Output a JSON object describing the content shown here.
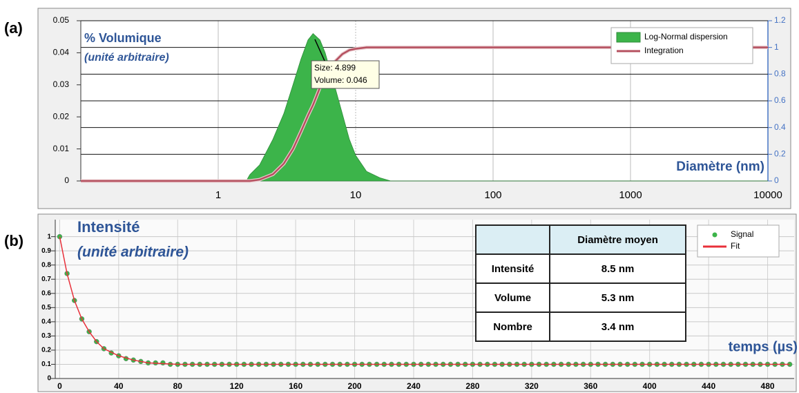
{
  "chart_data": [
    {
      "type": "area",
      "panel_label": "(a)",
      "y_label": "% Volumique",
      "y_label_sub": "(unité arbitraire)",
      "x_label": "Diamètre (nm)",
      "tooltip": [
        "Size: 4.899",
        "Volume: 0.046"
      ],
      "xscale": "log",
      "xlim": [
        0.1,
        10000
      ],
      "xticks": [
        1,
        10,
        100,
        1000,
        10000
      ],
      "ylim": [
        0,
        0.05
      ],
      "yticks": [
        0,
        0.01,
        0.02,
        0.03,
        0.04,
        0.05
      ],
      "y2lim": [
        0,
        1.2
      ],
      "y2ticks": [
        0,
        0.2,
        0.4,
        0.6,
        0.8,
        1,
        1.2
      ],
      "grid": true,
      "legend": "upper right",
      "x": [
        0.1,
        1.6,
        1.7,
        2,
        2.5,
        3,
        3.5,
        4,
        4.5,
        4.9,
        5.5,
        6,
        7,
        8,
        9,
        10,
        12,
        15,
        18,
        10000
      ],
      "series": [
        {
          "name": "Log-Normal dispersion",
          "type": "area",
          "color": "#3cb44a",
          "values": [
            0,
            0,
            0.002,
            0.005,
            0.013,
            0.021,
            0.03,
            0.038,
            0.044,
            0.046,
            0.044,
            0.04,
            0.03,
            0.021,
            0.013,
            0.008,
            0.003,
            0.001,
            0,
            0
          ]
        },
        {
          "name": "Integration",
          "type": "line",
          "axis": "y2",
          "color": "#b5505f",
          "values": [
            0,
            0,
            0,
            0.01,
            0.05,
            0.13,
            0.24,
            0.37,
            0.49,
            0.57,
            0.7,
            0.78,
            0.89,
            0.95,
            0.98,
            0.99,
            1,
            1,
            1,
            1
          ]
        }
      ]
    },
    {
      "type": "scatter",
      "panel_label": "(b)",
      "y_label": "Intensité",
      "y_label_sub": "(unité arbitraire)",
      "x_label": "temps (µs)",
      "xlim": [
        -3,
        498
      ],
      "xticks": [
        0,
        40,
        80,
        120,
        160,
        200,
        240,
        280,
        320,
        360,
        400,
        440,
        480
      ],
      "ylim": [
        0,
        1.12
      ],
      "yticks": [
        0,
        0.1,
        0.2,
        0.3,
        0.4,
        0.5,
        0.6,
        0.7,
        0.8,
        0.9,
        1
      ],
      "grid": true,
      "legend": "upper right",
      "table": {
        "header": "Diamètre moyen",
        "rows": [
          [
            "Intensité",
            "8.5 nm"
          ],
          [
            "Volume",
            "5.3 nm"
          ],
          [
            "Nombre",
            "3.4 nm"
          ]
        ]
      },
      "series": [
        {
          "name": "Signal",
          "type": "scatter",
          "color": "#3cb44a",
          "x": [
            0,
            5,
            10,
            15,
            20,
            25,
            30,
            35,
            40,
            45,
            50,
            55,
            60,
            65,
            70,
            75,
            80,
            85,
            90,
            95,
            100,
            105,
            110,
            115,
            120,
            125,
            130,
            135,
            140,
            145,
            150,
            155,
            160,
            165,
            170,
            175,
            180,
            185,
            190,
            195,
            200,
            205,
            210,
            215,
            220,
            225,
            230,
            235,
            240,
            245,
            250,
            255,
            260,
            265,
            270,
            275,
            280,
            285,
            290,
            295,
            300,
            305,
            310,
            315,
            320,
            325,
            330,
            335,
            340,
            345,
            350,
            355,
            360,
            365,
            370,
            375,
            380,
            385,
            390,
            395,
            400,
            405,
            410,
            415,
            420,
            425,
            430,
            435,
            440,
            445,
            450,
            455,
            460,
            465,
            470,
            475,
            480,
            485,
            490,
            495
          ],
          "values": [
            1,
            0.74,
            0.55,
            0.42,
            0.33,
            0.26,
            0.21,
            0.18,
            0.16,
            0.14,
            0.13,
            0.12,
            0.11,
            0.11,
            0.11,
            0.1,
            0.1,
            0.1,
            0.1,
            0.1,
            0.1,
            0.1,
            0.1,
            0.1,
            0.1,
            0.1,
            0.1,
            0.1,
            0.1,
            0.1,
            0.1,
            0.1,
            0.1,
            0.1,
            0.1,
            0.1,
            0.1,
            0.1,
            0.1,
            0.1,
            0.1,
            0.1,
            0.1,
            0.1,
            0.1,
            0.1,
            0.1,
            0.1,
            0.1,
            0.1,
            0.1,
            0.1,
            0.1,
            0.1,
            0.1,
            0.1,
            0.1,
            0.1,
            0.1,
            0.1,
            0.1,
            0.1,
            0.1,
            0.1,
            0.1,
            0.1,
            0.1,
            0.1,
            0.1,
            0.1,
            0.1,
            0.1,
            0.1,
            0.1,
            0.1,
            0.1,
            0.1,
            0.1,
            0.1,
            0.1,
            0.1,
            0.1,
            0.1,
            0.1,
            0.1,
            0.1,
            0.1,
            0.1,
            0.1,
            0.1,
            0.1,
            0.1,
            0.1,
            0.1,
            0.1,
            0.1,
            0.1,
            0.1,
            0.1,
            0.1
          ]
        },
        {
          "name": "Fit",
          "type": "line",
          "color": "#e8303a",
          "x": [
            0,
            5,
            10,
            15,
            20,
            25,
            30,
            40,
            50,
            60,
            80,
            100,
            150,
            200,
            300,
            400,
            495
          ],
          "values": [
            1,
            0.74,
            0.55,
            0.42,
            0.33,
            0.26,
            0.21,
            0.16,
            0.13,
            0.11,
            0.1,
            0.1,
            0.1,
            0.1,
            0.1,
            0.1,
            0.1
          ]
        }
      ]
    }
  ]
}
